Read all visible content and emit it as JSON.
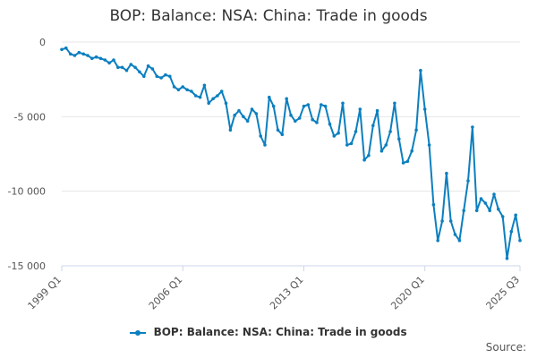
{
  "chart_data": {
    "type": "line",
    "title": "BOP: Balance: NSA: China: Trade in goods",
    "xlabel": "",
    "ylabel": "",
    "ylim": [
      -15000,
      0
    ],
    "yticks": [
      0,
      -5000,
      -10000,
      -15000
    ],
    "ytick_labels": [
      "0",
      "-5 000",
      "-10 000",
      "-15 000"
    ],
    "xtick_labels": [
      {
        "label": "1999 Q1",
        "index": 0
      },
      {
        "label": "2006 Q1",
        "index": 28
      },
      {
        "label": "2013 Q1",
        "index": 56
      },
      {
        "label": "2020 Q1",
        "index": 84
      },
      {
        "label": "2025 Q3",
        "index": 106
      }
    ],
    "grid": true,
    "legend_position": "bottom",
    "series": [
      {
        "name": "BOP: Balance: NSA: China: Trade in goods",
        "color": "#0c7fbf",
        "values": [
          -500,
          -400,
          -800,
          -900,
          -700,
          -800,
          -900,
          -1100,
          -1000,
          -1100,
          -1200,
          -1400,
          -1200,
          -1700,
          -1700,
          -1900,
          -1500,
          -1700,
          -2000,
          -2300,
          -1600,
          -1800,
          -2300,
          -2400,
          -2200,
          -2300,
          -3000,
          -3200,
          -3000,
          -3200,
          -3300,
          -3600,
          -3700,
          -2900,
          -4100,
          -3800,
          -3600,
          -3300,
          -4100,
          -5900,
          -4900,
          -4600,
          -5000,
          -5300,
          -4500,
          -4800,
          -6300,
          -6900,
          -3700,
          -4300,
          -5900,
          -6200,
          -3800,
          -4900,
          -5300,
          -5100,
          -4300,
          -4200,
          -5200,
          -5400,
          -4200,
          -4300,
          -5500,
          -6300,
          -6100,
          -4100,
          -6900,
          -6800,
          -6000,
          -4500,
          -7900,
          -7600,
          -5600,
          -4600,
          -7300,
          -6900,
          -6000,
          -4100,
          -6500,
          -8100,
          -8000,
          -7300,
          -5900,
          -1900,
          -4500,
          -6900,
          -10900,
          -13300,
          -12000,
          -8800,
          -12000,
          -12900,
          -13300,
          -11300,
          -9300,
          -5700,
          -11300,
          -10500,
          -10800,
          -11300,
          -10200,
          -11200,
          -11700,
          -14500,
          -12700,
          -11600,
          -13300
        ]
      }
    ]
  },
  "legend": {
    "label": "BOP: Balance: NSA: China: Trade in goods"
  },
  "footer": {
    "source_label": "Source:"
  }
}
